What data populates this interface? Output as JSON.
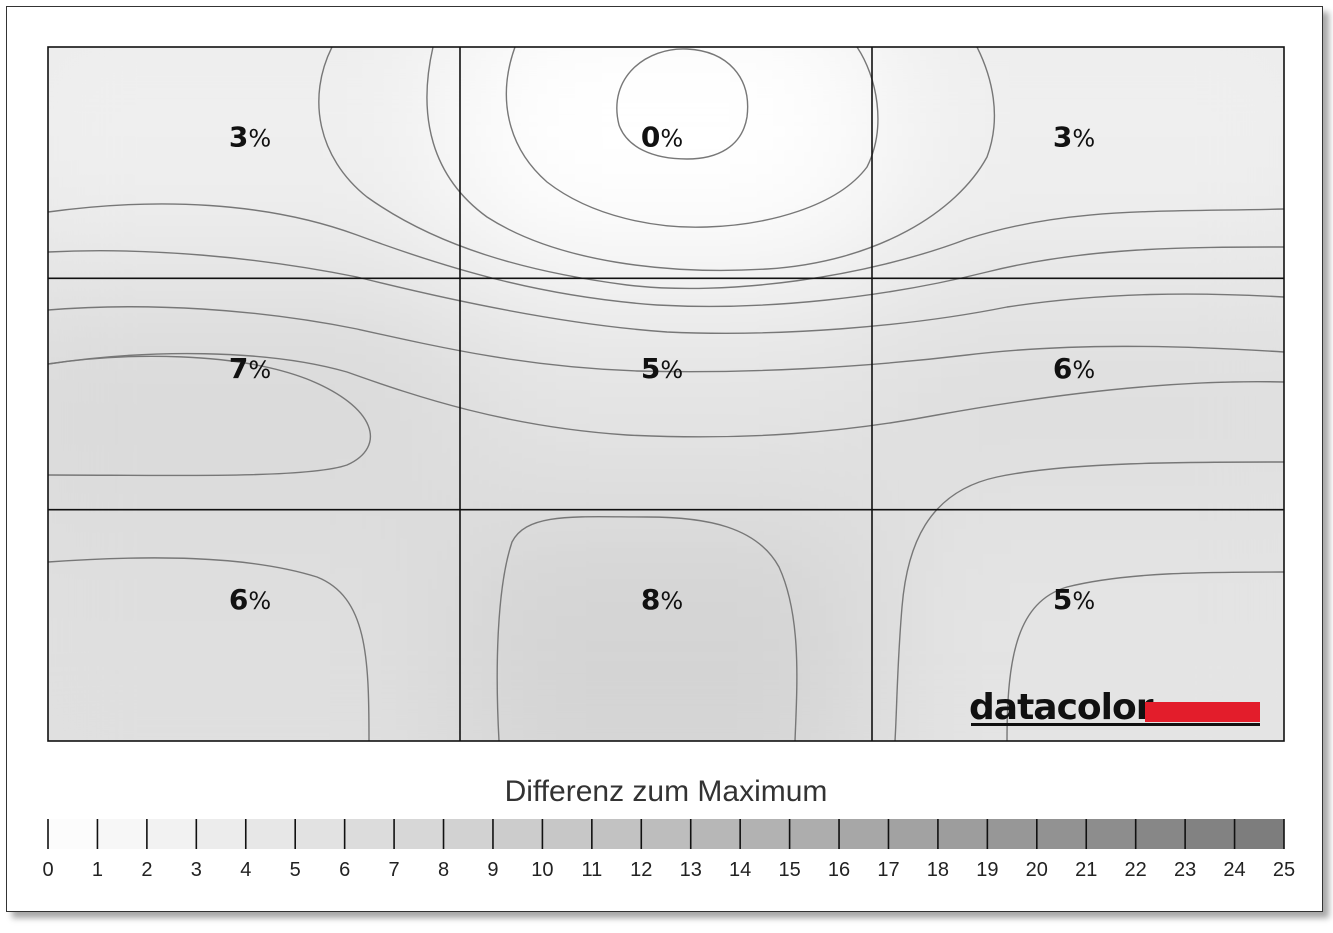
{
  "chart_data": {
    "type": "heatmap",
    "rows": 3,
    "cols": 3,
    "values": [
      [
        3,
        0,
        3
      ],
      [
        7,
        5,
        6
      ],
      [
        6,
        8,
        5
      ]
    ],
    "unit": "%",
    "scale_title": "Differenz zum Maximum",
    "scale_range": [
      0,
      25
    ],
    "scale_ticks": [
      0,
      1,
      2,
      3,
      4,
      5,
      6,
      7,
      8,
      9,
      10,
      11,
      12,
      13,
      14,
      15,
      16,
      17,
      18,
      19,
      20,
      21,
      22,
      23,
      24,
      25
    ],
    "scale_colors": {
      "min": "#ffffff",
      "max": "#7a7a7a"
    },
    "grid": true
  },
  "logo": {
    "text": "datacolor",
    "bar_color": "#e31d2b"
  }
}
